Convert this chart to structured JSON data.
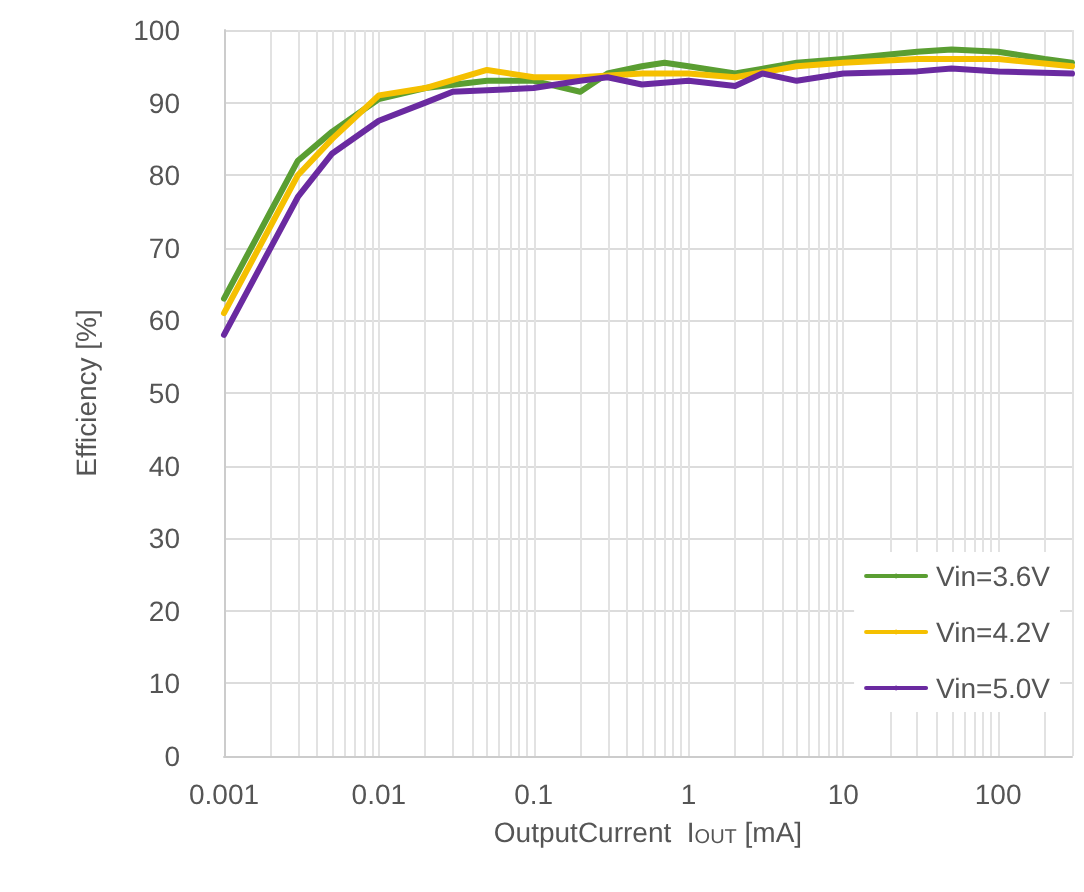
{
  "chart_data": {
    "type": "line",
    "xlabel": "OutputCurrent  I$_{OUT}$ [mA]",
    "ylabel": "Efficiency [%]",
    "log": "x",
    "xlim": [
      0.001,
      300
    ],
    "xticks": [
      0.001,
      {
        "value": 0.002,
        "label": null
      },
      {
        "value": 0.003,
        "label": null
      },
      {
        "value": 0.004,
        "label": null
      },
      {
        "value": 0.005,
        "label": null
      },
      {
        "value": 0.006,
        "label": null
      },
      {
        "value": 0.007,
        "label": null
      },
      {
        "value": 0.008,
        "label": null
      },
      {
        "value": 0.009,
        "label": null
      },
      0.01,
      {
        "value": 0.02,
        "label": null
      },
      {
        "value": 0.03,
        "label": null
      },
      {
        "value": 0.04,
        "label": null
      },
      {
        "value": 0.05,
        "label": null
      },
      {
        "value": 0.06,
        "label": null
      },
      {
        "value": 0.07,
        "label": null
      },
      {
        "value": 0.08,
        "label": null
      },
      {
        "value": 0.09,
        "label": null
      },
      0.1,
      {
        "value": 0.2,
        "label": null
      },
      {
        "value": 0.3,
        "label": null
      },
      {
        "value": 0.4,
        "label": null
      },
      {
        "value": 0.5,
        "label": null
      },
      {
        "value": 0.6,
        "label": null
      },
      {
        "value": 0.7,
        "label": null
      },
      {
        "value": 0.8,
        "label": null
      },
      {
        "value": 0.9,
        "label": null
      },
      1,
      {
        "value": 2,
        "label": null
      },
      {
        "value": 3,
        "label": null
      },
      {
        "value": 4,
        "label": null
      },
      {
        "value": 5,
        "label": null
      },
      {
        "value": 6,
        "label": null
      },
      {
        "value": 7,
        "label": null
      },
      {
        "value": 8,
        "label": null
      },
      {
        "value": 9,
        "label": null
      },
      10,
      {
        "value": 20,
        "label": null
      },
      {
        "value": 30,
        "label": null
      },
      {
        "value": 40,
        "label": null
      },
      {
        "value": 50,
        "label": null
      },
      {
        "value": 60,
        "label": null
      },
      {
        "value": 70,
        "label": null
      },
      {
        "value": 80,
        "label": null
      },
      {
        "value": 90,
        "label": null
      },
      100,
      {
        "value": 200,
        "label": null
      },
      {
        "value": 300,
        "label": null
      }
    ],
    "ylim": [
      0,
      100
    ],
    "yticks": [
      0,
      10,
      20,
      30,
      40,
      50,
      60,
      70,
      80,
      90,
      100
    ],
    "grid": true,
    "legend": "bottom right",
    "marker": "none",
    "line_style": "solid",
    "series": [
      {
        "name": "Vin=3.6V",
        "color": "#5a9e32",
        "x": [
          0.001,
          0.002,
          0.003,
          0.005,
          0.01,
          0.02,
          0.05,
          0.1,
          0.2,
          0.3,
          0.5,
          0.7,
          1,
          2,
          5,
          10,
          30,
          50,
          100,
          200,
          300
        ],
        "values": [
          63,
          75,
          82,
          86,
          90.5,
          92,
          93,
          93,
          91.5,
          94,
          95,
          95.5,
          95,
          94,
          95.5,
          96,
          97,
          97.3,
          97,
          96,
          95.5
        ]
      },
      {
        "name": "Vin=4.2V",
        "color": "#f5c000",
        "x": [
          0.001,
          0.002,
          0.003,
          0.005,
          0.01,
          0.02,
          0.05,
          0.1,
          0.2,
          0.5,
          1,
          2,
          5,
          10,
          30,
          100,
          300
        ],
        "values": [
          61,
          73,
          80,
          85,
          91,
          92,
          94.5,
          93.5,
          93.5,
          94,
          94,
          93.5,
          95,
          95.5,
          96,
          96,
          95
        ]
      },
      {
        "name": "Vin=5.0V",
        "color": "#6a2aa0",
        "x": [
          0.001,
          0.002,
          0.003,
          0.005,
          0.01,
          0.02,
          0.03,
          0.1,
          0.2,
          0.3,
          0.5,
          1,
          2,
          3,
          5,
          10,
          30,
          50,
          100,
          300
        ],
        "values": [
          58,
          70,
          77,
          83,
          87.5,
          90,
          91.5,
          92,
          93,
          93.5,
          92.5,
          93,
          92.3,
          94,
          93,
          94,
          94.3,
          94.7,
          94.3,
          94
        ]
      }
    ]
  }
}
